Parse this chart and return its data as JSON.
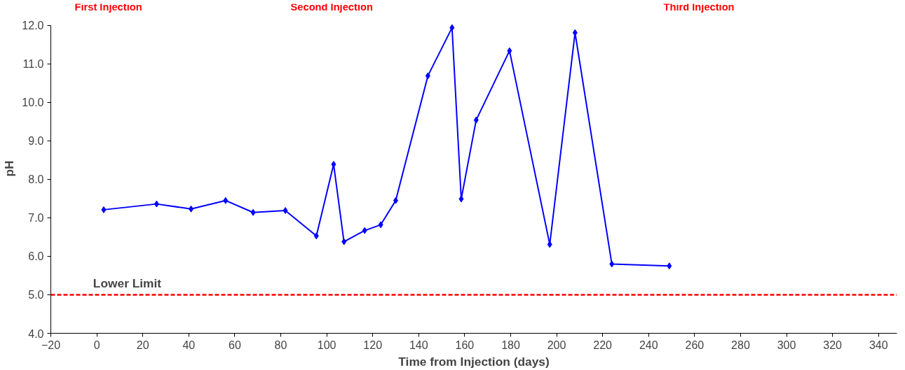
{
  "chart_data": {
    "type": "line",
    "xlabel": "Time from Injection (days)",
    "ylabel": "pH",
    "x": [
      3,
      26,
      41,
      56,
      68,
      82,
      95.5,
      103,
      107.5,
      116.5,
      123.5,
      130,
      144,
      154.5,
      158.5,
      165,
      179.5,
      197,
      208,
      224,
      249
    ],
    "series": [
      {
        "color": "#0000ff",
        "values": [
          7.21,
          7.36,
          7.23,
          7.45,
          7.14,
          7.19,
          6.53,
          8.39,
          6.38,
          6.67,
          6.82,
          7.45,
          10.69,
          11.94,
          7.49,
          9.54,
          11.34,
          6.31,
          11.81,
          5.8,
          5.75
        ]
      }
    ],
    "marker": "diamond",
    "line_style": "solid",
    "grid": false,
    "xlim": [
      -20,
      348
    ],
    "xticks": [
      -20,
      0,
      20,
      40,
      60,
      80,
      100,
      120,
      140,
      160,
      180,
      200,
      220,
      240,
      260,
      280,
      300,
      320,
      340
    ],
    "ylim": [
      4,
      12
    ],
    "yticks": [
      {
        "value": 4,
        "label": "4.0"
      },
      {
        "value": 5,
        "label": "5.0"
      },
      {
        "value": 6,
        "label": "6.0"
      },
      {
        "value": 7,
        "label": "7.0"
      },
      {
        "value": 8,
        "label": "8.0"
      },
      {
        "value": 9,
        "label": "9.0"
      },
      {
        "value": 10,
        "label": "10.0"
      },
      {
        "value": 11,
        "label": "11.0"
      },
      {
        "value": 12,
        "label": "12.0"
      }
    ],
    "ref_lines": [
      {
        "axis": "y",
        "value": 5,
        "label": "Lower Limit",
        "color": "#ff0000",
        "line_style": "dashed"
      }
    ],
    "annotations": [
      "First Injection",
      "Second Injection",
      "Third Injection"
    ]
  }
}
